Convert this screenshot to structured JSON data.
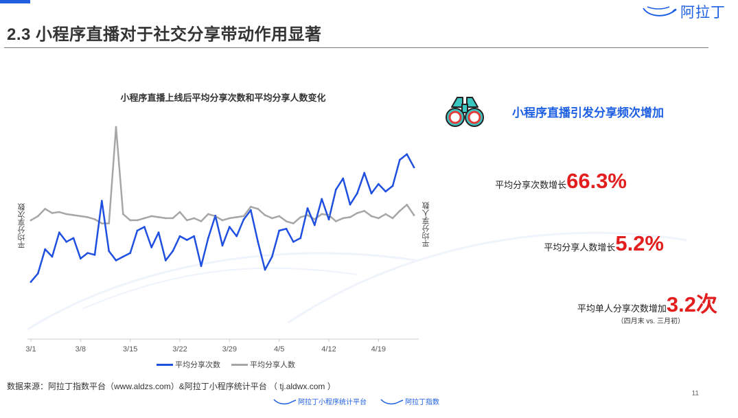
{
  "header": {
    "title": "2.3 小程序直播对于社交分享带动作用显著",
    "logo_text": "阿拉丁"
  },
  "chart_data": {
    "type": "line",
    "title": "小程序直播上线后平均分享次数和平均分享人数变化",
    "ylabel_left": "平均分享次数",
    "ylabel_right": "平均分享人数",
    "x_ticks": [
      "3/1",
      "3/8",
      "3/15",
      "3/22",
      "3/29",
      "4/5",
      "4/12",
      "4/19"
    ],
    "x_dates": [
      "3/1",
      "3/2",
      "3/3",
      "3/4",
      "3/5",
      "3/6",
      "3/7",
      "3/8",
      "3/9",
      "3/10",
      "3/11",
      "3/12",
      "3/13",
      "3/14",
      "3/15",
      "3/16",
      "3/17",
      "3/18",
      "3/19",
      "3/20",
      "3/21",
      "3/22",
      "3/23",
      "3/24",
      "3/25",
      "3/26",
      "3/27",
      "3/28",
      "3/29",
      "3/30",
      "3/31",
      "4/1",
      "4/2",
      "4/3",
      "4/4",
      "4/5",
      "4/6",
      "4/7",
      "4/8",
      "4/9",
      "4/10",
      "4/11",
      "4/12",
      "4/13",
      "4/14",
      "4/15",
      "4/16",
      "4/17",
      "4/18",
      "4/19",
      "4/20",
      "4/21",
      "4/22",
      "4/23",
      "4/24"
    ],
    "y_axis_labels": "hidden",
    "series": [
      {
        "name": "平均分享次数",
        "color": "#1f4fe0",
        "axis": "left",
        "values": [
          0.5,
          5,
          18,
          14,
          27,
          22,
          24,
          13,
          16,
          15,
          44,
          17,
          12,
          14,
          16,
          28,
          30,
          19,
          27,
          12,
          17,
          25,
          23,
          25,
          9,
          24,
          36,
          20,
          30,
          25,
          34,
          39,
          22,
          7,
          14,
          28,
          29,
          22,
          24,
          40,
          31,
          45,
          34,
          50,
          56,
          42,
          48,
          59,
          48,
          53,
          49,
          52,
          66,
          69,
          62
        ]
      },
      {
        "name": "平均分享人数",
        "color": "#a6a6a6",
        "axis": "right",
        "values": [
          6,
          10,
          17,
          13,
          14,
          12,
          11,
          10,
          9,
          7,
          3,
          3,
          96,
          12,
          6,
          6,
          8,
          10,
          9,
          8,
          8,
          14,
          6,
          8,
          5,
          12,
          10,
          6,
          8,
          9,
          10,
          19,
          17,
          11,
          8,
          10,
          5,
          3,
          9,
          11,
          7,
          12,
          11,
          5,
          8,
          9,
          13,
          15,
          10,
          8,
          12,
          8,
          15,
          21,
          11
        ]
      }
    ],
    "legend_position": "bottom-center",
    "grid": false
  },
  "panel": {
    "heading": "小程序直播引发分享频次增加",
    "icon": "binoculars-icon",
    "stats": [
      {
        "label": "平均分享次数增长",
        "value": "66.3%"
      },
      {
        "label": "平均分享人数增长",
        "value": "5.2%"
      },
      {
        "label": "平均单人分享次数增加",
        "value": "3.2次",
        "note": "（四月末 vs. 三月初）"
      }
    ]
  },
  "footer": {
    "source": "数据来源：阿拉丁指数平台（www.aldzs.com）&阿拉丁小程序统计平台 （ tj.aldwx.com ）",
    "page_number": "11",
    "logos": [
      "阿拉丁小程序统计平台",
      "阿拉丁指数"
    ]
  },
  "colors": {
    "accent": "#1d5fe3",
    "highlight": "#e21e1e",
    "icon_teal": "#3cc6c2"
  }
}
